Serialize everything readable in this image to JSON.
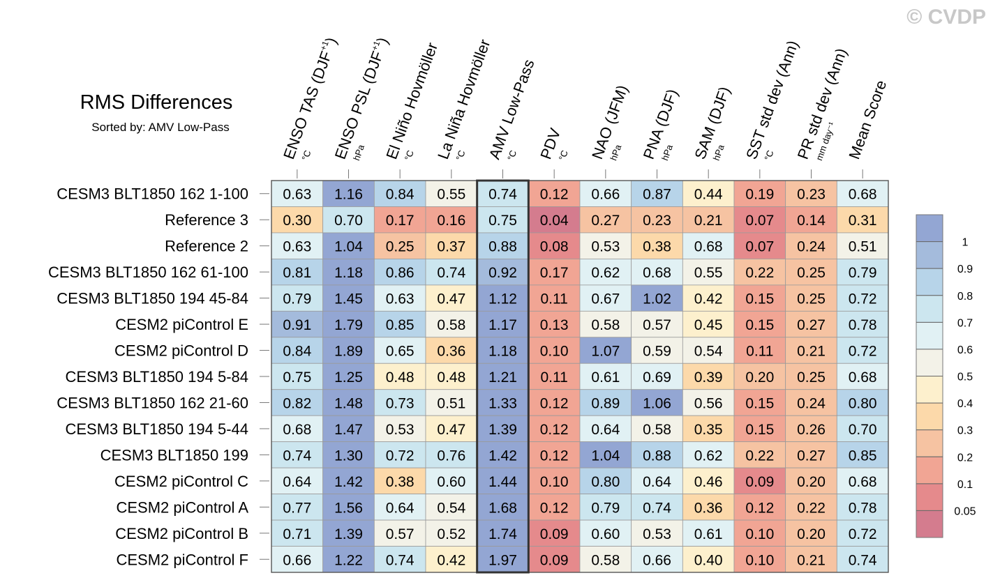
{
  "watermark": "© CVDP",
  "chart_data": {
    "type": "heatmap",
    "title": "RMS Differences",
    "subtitle": "Sorted by: AMV Low-Pass",
    "highlighted_column": 4,
    "columns": [
      {
        "label": "ENSO TAS (DJF",
        "sup": "+1",
        "close": ")",
        "unit": "°C"
      },
      {
        "label": "ENSO PSL (DJF",
        "sup": "+1",
        "close": ")",
        "unit": "hPa"
      },
      {
        "label": "El Niño Hovmöller",
        "sup": "",
        "close": "",
        "unit": "°C"
      },
      {
        "label": "La Niña Hovmöller",
        "sup": "",
        "close": "",
        "unit": "°C"
      },
      {
        "label": "AMV Low-Pass",
        "sup": "",
        "close": "",
        "unit": "°C"
      },
      {
        "label": "PDV",
        "sup": "",
        "close": "",
        "unit": "°C"
      },
      {
        "label": "NAO (JFM)",
        "sup": "",
        "close": "",
        "unit": "hPa"
      },
      {
        "label": "PNA (DJF)",
        "sup": "",
        "close": "",
        "unit": "hPa"
      },
      {
        "label": "SAM (DJF)",
        "sup": "",
        "close": "",
        "unit": "hPa"
      },
      {
        "label": "SST std dev (Ann)",
        "sup": "",
        "close": "",
        "unit": "°C"
      },
      {
        "label": "PR std dev (Ann)",
        "sup": "",
        "close": "",
        "unit": "mm day⁻¹"
      },
      {
        "label": "Mean Score",
        "sup": "",
        "close": "",
        "unit": ""
      }
    ],
    "rows": [
      {
        "label": "CESM3 BLT1850 162 1-100",
        "values": [
          "0.63",
          "1.16",
          "0.84",
          "0.55",
          "0.74",
          "0.12",
          "0.66",
          "0.87",
          "0.44",
          "0.19",
          "0.23",
          "0.68"
        ]
      },
      {
        "label": "Reference 3",
        "values": [
          "0.30",
          "0.70",
          "0.17",
          "0.16",
          "0.75",
          "0.04",
          "0.27",
          "0.23",
          "0.21",
          "0.07",
          "0.14",
          "0.31"
        ]
      },
      {
        "label": "Reference 2",
        "values": [
          "0.63",
          "1.04",
          "0.25",
          "0.37",
          "0.88",
          "0.08",
          "0.53",
          "0.38",
          "0.68",
          "0.07",
          "0.24",
          "0.51"
        ]
      },
      {
        "label": "CESM3 BLT1850 162 61-100",
        "values": [
          "0.81",
          "1.18",
          "0.86",
          "0.74",
          "0.92",
          "0.17",
          "0.62",
          "0.68",
          "0.55",
          "0.22",
          "0.25",
          "0.79"
        ]
      },
      {
        "label": "CESM3 BLT1850 194 45-84",
        "values": [
          "0.79",
          "1.45",
          "0.63",
          "0.47",
          "1.12",
          "0.11",
          "0.67",
          "1.02",
          "0.42",
          "0.15",
          "0.25",
          "0.72"
        ]
      },
      {
        "label": "CESM2 piControl E",
        "values": [
          "0.91",
          "1.79",
          "0.85",
          "0.58",
          "1.17",
          "0.13",
          "0.58",
          "0.57",
          "0.45",
          "0.15",
          "0.27",
          "0.78"
        ]
      },
      {
        "label": "CESM2 piControl D",
        "values": [
          "0.84",
          "1.89",
          "0.65",
          "0.36",
          "1.18",
          "0.10",
          "1.07",
          "0.59",
          "0.54",
          "0.11",
          "0.21",
          "0.72"
        ]
      },
      {
        "label": "CESM3 BLT1850 194 5-84",
        "values": [
          "0.75",
          "1.25",
          "0.48",
          "0.48",
          "1.21",
          "0.11",
          "0.61",
          "0.69",
          "0.39",
          "0.20",
          "0.25",
          "0.68"
        ]
      },
      {
        "label": "CESM3 BLT1850 162 21-60",
        "values": [
          "0.82",
          "1.48",
          "0.73",
          "0.51",
          "1.33",
          "0.12",
          "0.89",
          "1.06",
          "0.56",
          "0.15",
          "0.24",
          "0.80"
        ]
      },
      {
        "label": "CESM3 BLT1850 194 5-44",
        "values": [
          "0.68",
          "1.47",
          "0.53",
          "0.47",
          "1.39",
          "0.12",
          "0.64",
          "0.58",
          "0.35",
          "0.15",
          "0.26",
          "0.70"
        ]
      },
      {
        "label": "CESM3 BLT1850 199",
        "values": [
          "0.74",
          "1.30",
          "0.72",
          "0.76",
          "1.42",
          "0.12",
          "1.04",
          "0.88",
          "0.62",
          "0.22",
          "0.27",
          "0.85"
        ]
      },
      {
        "label": "CESM2 piControl C",
        "values": [
          "0.64",
          "1.42",
          "0.38",
          "0.60",
          "1.44",
          "0.10",
          "0.80",
          "0.64",
          "0.46",
          "0.09",
          "0.20",
          "0.68"
        ]
      },
      {
        "label": "CESM2 piControl A",
        "values": [
          "0.77",
          "1.56",
          "0.64",
          "0.54",
          "1.68",
          "0.12",
          "0.79",
          "0.74",
          "0.36",
          "0.12",
          "0.22",
          "0.78"
        ]
      },
      {
        "label": "CESM2 piControl B",
        "values": [
          "0.71",
          "1.39",
          "0.57",
          "0.52",
          "1.74",
          "0.09",
          "0.60",
          "0.53",
          "0.61",
          "0.10",
          "0.20",
          "0.72"
        ]
      },
      {
        "label": "CESM2 piControl F",
        "values": [
          "0.66",
          "1.22",
          "0.74",
          "0.42",
          "1.97",
          "0.09",
          "0.58",
          "0.66",
          "0.40",
          "0.10",
          "0.21",
          "0.74"
        ]
      }
    ],
    "colorbar": {
      "thresholds": [
        0.05,
        0.1,
        0.2,
        0.3,
        0.4,
        0.5,
        0.6,
        0.7,
        0.8,
        0.9,
        1
      ],
      "tick_labels": [
        "1",
        "0.9",
        "0.8",
        "0.7",
        "0.6",
        "0.5",
        "0.4",
        "0.3",
        "0.2",
        "0.1",
        "0.05"
      ],
      "colors": [
        "#d47c8e",
        "#e58a8c",
        "#f1a594",
        "#f6c3a2",
        "#fcd9aa",
        "#fdf0cd",
        "#f3f2e8",
        "#e1f1f4",
        "#cce6ef",
        "#b7d4e9",
        "#a4bbdc",
        "#93a6d3"
      ]
    }
  }
}
